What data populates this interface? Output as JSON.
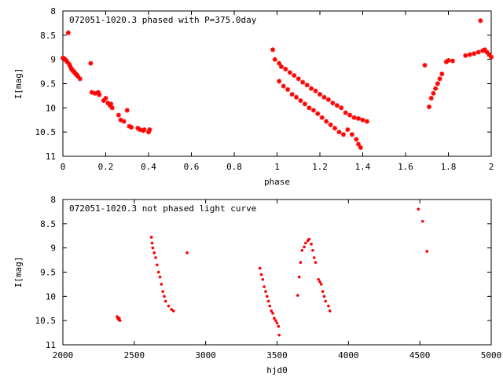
{
  "chart_data": [
    {
      "type": "scatter",
      "title": "072051-1020.3 phased with P=375.0day",
      "xlabel": "phase",
      "ylabel": "I[mag]",
      "xlim": [
        0,
        2
      ],
      "ylim": [
        8,
        11
      ],
      "y_inverted": true,
      "xticks": [
        "0",
        "0.2",
        "0.4",
        "0.6",
        "0.8",
        "1",
        "1.2",
        "1.4",
        "1.6",
        "1.8",
        "2"
      ],
      "yticks": [
        "8",
        "8.5",
        "9",
        "9.5",
        "10",
        "10.5",
        "11"
      ],
      "marker_color": "#ff0000",
      "marker": "x-plus",
      "grid": false,
      "series": [
        {
          "points": [
            [
              0.0,
              8.97
            ],
            [
              0.005,
              8.98
            ],
            [
              0.01,
              9.0
            ],
            [
              0.015,
              9.02
            ],
            [
              0.02,
              9.05
            ],
            [
              0.025,
              8.45
            ],
            [
              0.03,
              9.1
            ],
            [
              0.035,
              9.15
            ],
            [
              0.04,
              9.2
            ],
            [
              0.045,
              9.22
            ],
            [
              0.05,
              9.25
            ],
            [
              0.055,
              9.27
            ],
            [
              0.06,
              9.3
            ],
            [
              0.065,
              9.32
            ],
            [
              0.07,
              9.35
            ],
            [
              0.08,
              9.4
            ],
            [
              0.13,
              9.08
            ],
            [
              0.135,
              9.68
            ],
            [
              0.15,
              9.7
            ],
            [
              0.165,
              9.68
            ],
            [
              0.17,
              9.73
            ],
            [
              0.19,
              9.85
            ],
            [
              0.2,
              9.8
            ],
            [
              0.21,
              9.9
            ],
            [
              0.22,
              9.95
            ],
            [
              0.225,
              9.92
            ],
            [
              0.23,
              10.0
            ],
            [
              0.26,
              10.15
            ],
            [
              0.27,
              10.25
            ],
            [
              0.285,
              10.28
            ],
            [
              0.3,
              10.05
            ],
            [
              0.31,
              10.38
            ],
            [
              0.32,
              10.4
            ],
            [
              0.35,
              10.42
            ],
            [
              0.36,
              10.45
            ],
            [
              0.375,
              10.47
            ],
            [
              0.38,
              10.45
            ],
            [
              0.4,
              10.5
            ],
            [
              0.405,
              10.45
            ],
            [
              0.98,
              8.8
            ],
            [
              0.99,
              9.0
            ],
            [
              1.01,
              9.08
            ],
            [
              1.02,
              9.15
            ],
            [
              1.04,
              9.2
            ],
            [
              1.06,
              9.27
            ],
            [
              1.08,
              9.33
            ],
            [
              1.1,
              9.4
            ],
            [
              1.12,
              9.47
            ],
            [
              1.14,
              9.53
            ],
            [
              1.16,
              9.6
            ],
            [
              1.18,
              9.65
            ],
            [
              1.2,
              9.72
            ],
            [
              1.22,
              9.78
            ],
            [
              1.24,
              9.83
            ],
            [
              1.26,
              9.9
            ],
            [
              1.28,
              9.95
            ],
            [
              1.3,
              10.0
            ],
            [
              1.32,
              10.1
            ],
            [
              1.34,
              10.15
            ],
            [
              1.36,
              10.2
            ],
            [
              1.38,
              10.22
            ],
            [
              1.4,
              10.25
            ],
            [
              1.42,
              10.28
            ],
            [
              1.01,
              9.45
            ],
            [
              1.03,
              9.55
            ],
            [
              1.05,
              9.62
            ],
            [
              1.07,
              9.72
            ],
            [
              1.09,
              9.78
            ],
            [
              1.11,
              9.85
            ],
            [
              1.13,
              9.92
            ],
            [
              1.15,
              10.0
            ],
            [
              1.17,
              10.05
            ],
            [
              1.19,
              10.12
            ],
            [
              1.21,
              10.2
            ],
            [
              1.23,
              10.28
            ],
            [
              1.25,
              10.35
            ],
            [
              1.27,
              10.42
            ],
            [
              1.29,
              10.5
            ],
            [
              1.31,
              10.55
            ],
            [
              1.33,
              10.45
            ],
            [
              1.35,
              10.55
            ],
            [
              1.37,
              10.65
            ],
            [
              1.38,
              10.75
            ],
            [
              1.39,
              10.82
            ],
            [
              1.69,
              9.12
            ],
            [
              1.71,
              9.98
            ],
            [
              1.72,
              9.8
            ],
            [
              1.73,
              9.7
            ],
            [
              1.74,
              9.6
            ],
            [
              1.75,
              9.5
            ],
            [
              1.76,
              9.4
            ],
            [
              1.77,
              9.3
            ],
            [
              1.79,
              9.05
            ],
            [
              1.8,
              9.02
            ],
            [
              1.82,
              9.03
            ],
            [
              1.88,
              8.92
            ],
            [
              1.9,
              8.9
            ],
            [
              1.92,
              8.88
            ],
            [
              1.94,
              8.85
            ],
            [
              1.95,
              8.2
            ],
            [
              1.96,
              8.82
            ],
            [
              1.97,
              8.8
            ],
            [
              1.98,
              8.85
            ],
            [
              1.99,
              8.9
            ],
            [
              2.0,
              8.95
            ]
          ]
        }
      ]
    },
    {
      "type": "scatter",
      "title": "072051-1020.3 not phased light curve",
      "xlabel": "hjd0",
      "ylabel": "I[mag]",
      "xlim": [
        2000,
        5000
      ],
      "ylim": [
        8,
        11
      ],
      "y_inverted": true,
      "xticks": [
        "2000",
        "2500",
        "3000",
        "3500",
        "4000",
        "4500",
        "5000"
      ],
      "yticks": [
        "8",
        "8.5",
        "9",
        "9.5",
        "10",
        "10.5",
        "11"
      ],
      "marker_color": "#ff0000",
      "marker": "dot",
      "grid": false,
      "series": [
        {
          "points": [
            [
              2380,
              10.42
            ],
            [
              2385,
              10.45
            ],
            [
              2390,
              10.48
            ],
            [
              2395,
              10.45
            ],
            [
              2400,
              10.5
            ],
            [
              2620,
              8.78
            ],
            [
              2625,
              8.9
            ],
            [
              2630,
              9.0
            ],
            [
              2640,
              9.1
            ],
            [
              2650,
              9.2
            ],
            [
              2660,
              9.35
            ],
            [
              2670,
              9.5
            ],
            [
              2680,
              9.6
            ],
            [
              2690,
              9.75
            ],
            [
              2700,
              9.9
            ],
            [
              2710,
              10.0
            ],
            [
              2720,
              10.1
            ],
            [
              2740,
              10.2
            ],
            [
              2760,
              10.27
            ],
            [
              2775,
              10.3
            ],
            [
              2870,
              9.1
            ],
            [
              3380,
              9.42
            ],
            [
              3390,
              9.55
            ],
            [
              3400,
              9.65
            ],
            [
              3410,
              9.8
            ],
            [
              3420,
              9.9
            ],
            [
              3430,
              10.0
            ],
            [
              3440,
              10.1
            ],
            [
              3450,
              10.2
            ],
            [
              3460,
              10.3
            ],
            [
              3470,
              10.35
            ],
            [
              3480,
              10.45
            ],
            [
              3490,
              10.5
            ],
            [
              3500,
              10.55
            ],
            [
              3510,
              10.62
            ],
            [
              3515,
              10.8
            ],
            [
              3645,
              9.98
            ],
            [
              3655,
              9.6
            ],
            [
              3665,
              9.3
            ],
            [
              3675,
              9.05
            ],
            [
              3690,
              8.98
            ],
            [
              3700,
              8.9
            ],
            [
              3715,
              8.85
            ],
            [
              3725,
              8.82
            ],
            [
              3740,
              8.92
            ],
            [
              3750,
              9.05
            ],
            [
              3760,
              9.2
            ],
            [
              3770,
              9.3
            ],
            [
              3790,
              9.65
            ],
            [
              3800,
              9.7
            ],
            [
              3810,
              9.75
            ],
            [
              3820,
              9.9
            ],
            [
              3830,
              10.0
            ],
            [
              3840,
              10.1
            ],
            [
              3860,
              10.2
            ],
            [
              3870,
              10.3
            ],
            [
              4490,
              8.2
            ],
            [
              4520,
              8.45
            ],
            [
              4550,
              9.07
            ]
          ]
        }
      ]
    }
  ]
}
